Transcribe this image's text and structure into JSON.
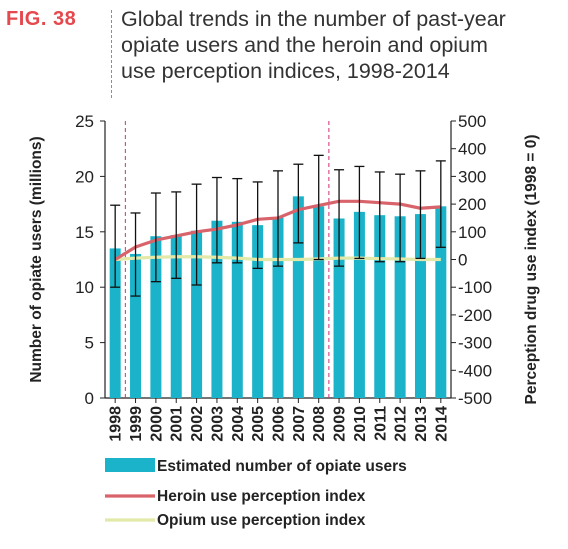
{
  "figure": {
    "label": "FIG. 38",
    "title_lines": [
      "Global trends in the number of past-year",
      "opiate users and the heroin and opium",
      "use perception indices, 1998-2014"
    ]
  },
  "colors": {
    "fig_label": "#e5484d",
    "divider": "#27b6c9",
    "bars": "#1ab3c9",
    "heroin_line": "#d9636b",
    "opium_line": "#e3e9a8",
    "error_bars": "#111111",
    "marker_lines": "#d12f7a"
  },
  "chart_data": {
    "type": "bar",
    "categories": [
      "1998",
      "1999",
      "2000",
      "2001",
      "2002",
      "2003",
      "2004",
      "2005",
      "2006",
      "2007",
      "2008",
      "2009",
      "2010",
      "2011",
      "2012",
      "2013",
      "2014"
    ],
    "ylabel": "Number of  opiate users (millions)",
    "y2label": "Perception drug use index (1998 = 0)",
    "ylim": [
      0,
      25
    ],
    "y2lim": [
      -500,
      500
    ],
    "yticks": [
      0,
      5,
      10,
      15,
      20,
      25
    ],
    "y2ticks": [
      500,
      400,
      300,
      200,
      100,
      0,
      -100,
      -200,
      -300,
      -400,
      -500
    ],
    "y2tick_labels": [
      "500",
      "400",
      "300",
      "200",
      "100",
      "0",
      "-100",
      "-200",
      "-300",
      "-400",
      "-500"
    ],
    "grid": false,
    "legend_position": "bottom",
    "series": [
      {
        "name": "Estimated number of opiate users",
        "kind": "bar",
        "axis": "left",
        "values": [
          13.5,
          13.0,
          14.6,
          14.7,
          15.1,
          16.0,
          15.9,
          15.6,
          16.3,
          18.2,
          17.3,
          16.2,
          16.8,
          16.5,
          16.4,
          16.6,
          17.3
        ],
        "error_low": [
          10.0,
          9.2,
          10.5,
          10.8,
          10.2,
          12.2,
          12.2,
          11.7,
          11.9,
          14.0,
          12.5,
          11.9,
          12.6,
          12.3,
          12.3,
          12.6,
          13.6
        ],
        "error_high": [
          17.4,
          16.7,
          18.5,
          18.6,
          19.3,
          19.9,
          19.8,
          19.5,
          20.5,
          21.1,
          21.9,
          20.6,
          20.9,
          20.4,
          20.2,
          20.5,
          21.4
        ]
      },
      {
        "name": "Heroin use perception index",
        "kind": "line",
        "axis": "right",
        "values": [
          0,
          45,
          70,
          85,
          100,
          110,
          125,
          145,
          150,
          180,
          195,
          210,
          210,
          205,
          200,
          185,
          190
        ]
      },
      {
        "name": "Opium use perception index",
        "kind": "line",
        "axis": "right",
        "values": [
          0,
          5,
          8,
          10,
          10,
          8,
          5,
          0,
          0,
          0,
          2,
          5,
          5,
          3,
          2,
          0,
          0
        ]
      }
    ],
    "reference_lines_at": [
      "1998",
      "2008"
    ]
  }
}
